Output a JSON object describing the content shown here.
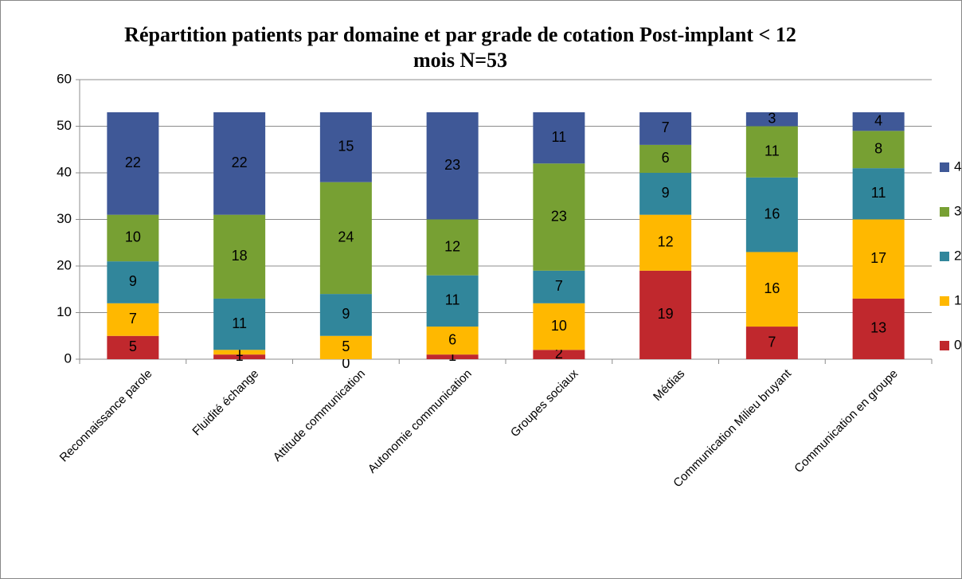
{
  "chart_data": {
    "type": "stacked_bar",
    "title": "Répartition patients par domaine et par grade de cotation Post-implant < 12 mois N=53",
    "categories": [
      "Reconnaissance parole",
      "Fluidité échange",
      "Attitude communication",
      "Autonomie communication",
      "Groupes sociaux",
      "Médias",
      "Communication Milieu bruyant",
      "Communication en groupe"
    ],
    "series": [
      {
        "name": "0",
        "color": "#c0282d",
        "values": [
          5,
          1,
          0,
          1,
          2,
          19,
          7,
          13
        ]
      },
      {
        "name": "1",
        "color": "#ffb800",
        "values": [
          7,
          1,
          5,
          6,
          10,
          12,
          16,
          17
        ]
      },
      {
        "name": "2",
        "color": "#31869b",
        "values": [
          9,
          11,
          9,
          11,
          7,
          9,
          16,
          11
        ]
      },
      {
        "name": "3",
        "color": "#77a033",
        "values": [
          10,
          18,
          24,
          12,
          23,
          6,
          11,
          8
        ]
      },
      {
        "name": "4",
        "color": "#3f5897",
        "values": [
          22,
          22,
          15,
          23,
          11,
          7,
          3,
          4
        ]
      }
    ],
    "ylim": [
      0,
      60
    ],
    "yticks": [
      0,
      10,
      20,
      30,
      40,
      50,
      60
    ],
    "grid": true,
    "legend": "right"
  }
}
